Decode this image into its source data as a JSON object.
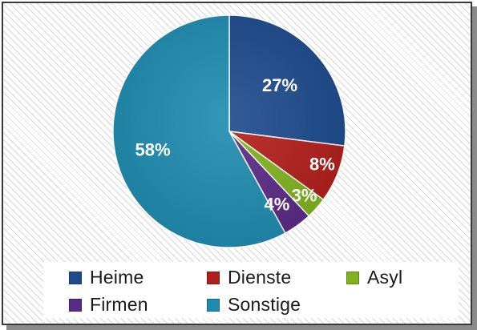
{
  "chart_data": {
    "type": "pie",
    "categories": [
      "Heime",
      "Dienste",
      "Asyl",
      "Firmen",
      "Sonstige"
    ],
    "values": [
      27,
      8,
      3,
      4,
      58
    ],
    "labels": [
      "27%",
      "8%",
      "3%",
      "4%",
      "58%"
    ],
    "colors": [
      "#1c4a8c",
      "#b21e1a",
      "#7fb21c",
      "#5a2a86",
      "#1e8cb0"
    ],
    "title": "",
    "legend_position": "bottom"
  }
}
